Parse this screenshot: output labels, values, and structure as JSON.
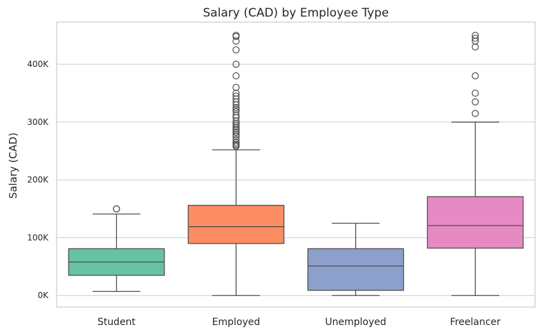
{
  "chart_data": {
    "type": "box",
    "title": "Salary (CAD) by Employee Type",
    "xlabel": "",
    "ylabel": "Salary (CAD)",
    "ylim": [
      -20000,
      473000
    ],
    "y_ticks": [
      {
        "value": 0,
        "label": "0K"
      },
      {
        "value": 100000,
        "label": "100K"
      },
      {
        "value": 200000,
        "label": "200K"
      },
      {
        "value": 300000,
        "label": "300K"
      },
      {
        "value": 400000,
        "label": "400K"
      }
    ],
    "grid": true,
    "colors": {
      "grid": "#cccccc",
      "axes": "#cccccc",
      "line": "#4d4d4d"
    },
    "categories": [
      "Student",
      "Employed",
      "Unemployed",
      "Freelancer"
    ],
    "boxes": [
      {
        "category": "Student",
        "color": "#66c2a5",
        "whisker_low": 7000,
        "q1": 35000,
        "median": 58000,
        "q3": 81000,
        "whisker_high": 141000,
        "outliers": [
          150000,
          150000
        ]
      },
      {
        "category": "Employed",
        "color": "#fc8d62",
        "whisker_low": 0,
        "q1": 90000,
        "median": 119000,
        "q3": 156000,
        "whisker_high": 252000,
        "outliers": [
          258000,
          260000,
          262000,
          265000,
          270000,
          275000,
          278000,
          282000,
          285000,
          288000,
          291000,
          295000,
          298000,
          302000,
          308000,
          312000,
          318000,
          322000,
          325000,
          330000,
          335000,
          340000,
          345000,
          350000,
          360000,
          380000,
          400000,
          425000,
          440000,
          448000,
          450000
        ]
      },
      {
        "category": "Unemployed",
        "color": "#8da0cb",
        "whisker_low": 0,
        "q1": 9000,
        "median": 51000,
        "q3": 81000,
        "whisker_high": 125000,
        "outliers": []
      },
      {
        "category": "Freelancer",
        "color": "#e78ac3",
        "whisker_low": 0,
        "q1": 82000,
        "median": 121000,
        "q3": 171000,
        "whisker_high": 300000,
        "outliers": [
          315000,
          335000,
          350000,
          380000,
          430000,
          440000,
          445000,
          450000
        ]
      }
    ]
  }
}
